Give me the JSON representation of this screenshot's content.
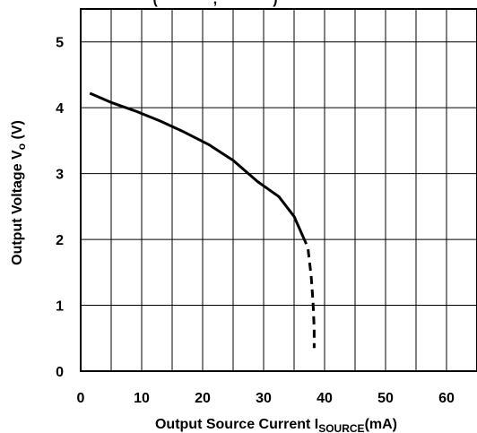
{
  "chart_data": {
    "type": "line",
    "title_fragment": "(",
    "title_fragment_2": ",",
    "title_fragment_3": ")",
    "xlabel": "Output Source Current  I",
    "xlabel_sub": "SOURCE",
    "xlabel_unit": "(mA)",
    "ylabel": "Output Voltage V",
    "ylabel_sub": "o",
    "ylabel_unit": " (V)",
    "xlim": [
      0,
      65
    ],
    "ylim": [
      0,
      5.5
    ],
    "x_ticks": [
      0,
      10,
      20,
      30,
      40,
      50,
      60
    ],
    "x_tick_labels": [
      "0",
      "10",
      "20",
      "30",
      "40",
      "50",
      "60"
    ],
    "y_ticks": [
      0,
      1,
      2,
      3,
      4,
      5
    ],
    "y_tick_labels": [
      "0",
      "1",
      "2",
      "3",
      "4",
      "5"
    ],
    "grid_x_step": 5,
    "grid_y_step": 1,
    "grid": true,
    "series": [
      {
        "style": "solid",
        "x": [
          1.5,
          5,
          9,
          13,
          17,
          21,
          25,
          29,
          32.5,
          35,
          37
        ],
        "y": [
          4.22,
          4.08,
          3.95,
          3.8,
          3.63,
          3.44,
          3.2,
          2.88,
          2.65,
          2.35,
          1.93
        ]
      },
      {
        "style": "dashed",
        "x": [
          37.3,
          37.8,
          38.1,
          38.3,
          38.3
        ],
        "y": [
          1.85,
          1.45,
          1.05,
          0.65,
          0.35
        ]
      }
    ]
  }
}
